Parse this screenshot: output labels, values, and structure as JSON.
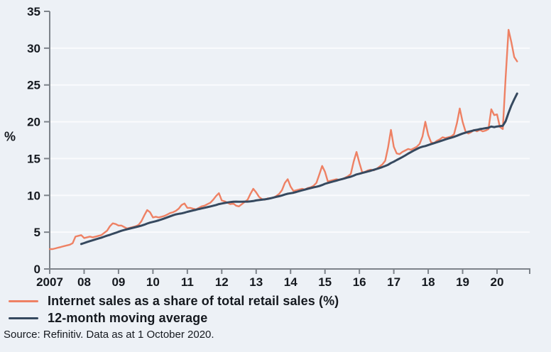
{
  "page": {
    "background_color": "#edf1f6",
    "text_color": "#15191f"
  },
  "chart_data": {
    "type": "line",
    "title": "",
    "ylabel": "%",
    "ylim": [
      0,
      35
    ],
    "yticks": [
      0,
      5,
      10,
      15,
      20,
      25,
      30,
      35
    ],
    "grid": "horizontal white lines every 5 units",
    "legend_position": "below-left",
    "frequency": "monthly",
    "start": "2007-01",
    "end": "2020-08",
    "x_axis": {
      "tick_years": [
        2007,
        2008,
        2009,
        2010,
        2011,
        2012,
        2013,
        2014,
        2015,
        2016,
        2017,
        2018,
        2019,
        2020
      ],
      "tick_labels": [
        "2007",
        "08",
        "09",
        "10",
        "11",
        "12",
        "13",
        "14",
        "15",
        "16",
        "17",
        "18",
        "19",
        "20"
      ]
    },
    "colors": {
      "background": "#edf1f6",
      "gridline": "#fafbfd",
      "axis": "#7d838a",
      "text": "#15191f"
    },
    "series": [
      {
        "name": "Internet sales as a share of total retail sales (%)",
        "color": "#ee8164",
        "values": [
          2.7,
          2.7,
          2.8,
          2.9,
          3.0,
          3.1,
          3.2,
          3.3,
          3.5,
          4.4,
          4.5,
          4.6,
          4.2,
          4.3,
          4.4,
          4.3,
          4.4,
          4.5,
          4.6,
          4.9,
          5.2,
          5.8,
          6.2,
          6.1,
          5.9,
          5.9,
          5.7,
          5.5,
          5.6,
          5.7,
          5.8,
          6.0,
          6.5,
          7.3,
          8.0,
          7.7,
          7.0,
          7.1,
          7.0,
          7.1,
          7.2,
          7.4,
          7.6,
          7.7,
          7.9,
          8.2,
          8.7,
          8.9,
          8.3,
          8.3,
          8.2,
          8.1,
          8.3,
          8.5,
          8.6,
          8.8,
          9.0,
          9.4,
          9.9,
          10.3,
          9.3,
          9.2,
          9.0,
          8.8,
          8.9,
          8.6,
          8.5,
          8.8,
          9.1,
          9.4,
          10.2,
          10.9,
          10.4,
          9.8,
          9.5,
          9.4,
          9.6,
          9.6,
          9.7,
          9.9,
          10.2,
          10.7,
          11.7,
          12.2,
          11.2,
          10.6,
          10.7,
          10.8,
          10.9,
          10.8,
          11.0,
          11.1,
          11.3,
          11.7,
          12.8,
          14.0,
          13.2,
          11.9,
          12.0,
          12.1,
          12.2,
          12.1,
          12.2,
          12.4,
          12.6,
          12.9,
          14.6,
          15.9,
          14.4,
          13.1,
          13.2,
          13.4,
          13.5,
          13.4,
          13.6,
          13.9,
          14.2,
          14.7,
          16.5,
          18.9,
          16.6,
          15.7,
          15.6,
          15.9,
          16.1,
          16.3,
          16.2,
          16.4,
          16.6,
          17.0,
          18.0,
          20.0,
          18.2,
          17.2,
          17.1,
          17.4,
          17.6,
          17.9,
          17.8,
          17.9,
          18.0,
          18.3,
          19.8,
          21.8,
          20.0,
          18.7,
          18.4,
          18.6,
          18.9,
          18.7,
          18.9,
          18.7,
          18.8,
          19.0,
          21.7,
          20.9,
          21.0,
          19.3,
          19.0,
          26.0,
          32.5,
          30.8,
          28.8,
          28.2
        ]
      },
      {
        "name": "12-month moving average",
        "color": "#36495f",
        "derivation": "trailing 12-month mean of the monthly series",
        "starts": "2007-12"
      }
    ]
  },
  "source": {
    "text": "Source: Refinitiv. Data as at 1 October 2020."
  }
}
